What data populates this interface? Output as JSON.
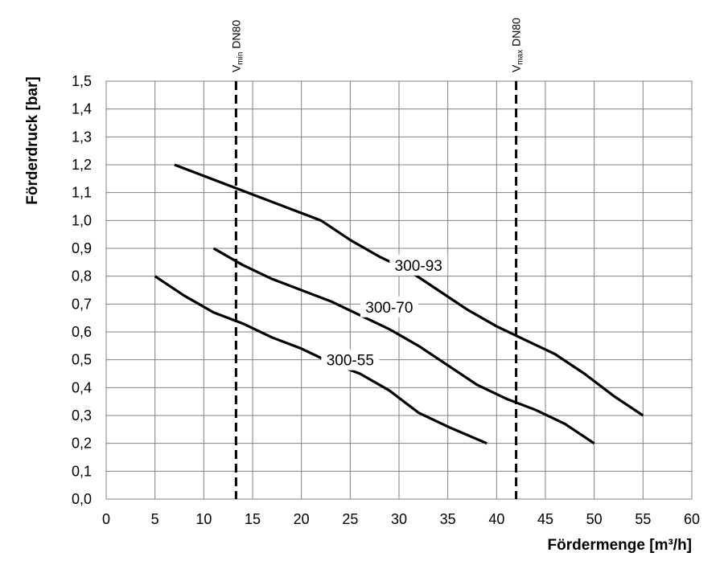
{
  "chart_data": {
    "type": "line",
    "title": "",
    "xlabel": "Fördermenge [m³/h]",
    "ylabel": "Förderdruck [bar]",
    "xlim": [
      0,
      60
    ],
    "ylim": [
      0,
      1.5
    ],
    "x_ticks": [
      "0",
      "5",
      "10",
      "15",
      "20",
      "25",
      "30",
      "35",
      "40",
      "45",
      "50",
      "55",
      "60"
    ],
    "y_ticks": [
      "0,0",
      "0,1",
      "0,2",
      "0,3",
      "0,4",
      "0,5",
      "0,6",
      "0,7",
      "0,8",
      "0,9",
      "1,0",
      "1,1",
      "1,2",
      "1,3",
      "1,4",
      "1,5"
    ],
    "grid": true,
    "series": [
      {
        "name": "300-93",
        "x": [
          7,
          10,
          13,
          16,
          19,
          22,
          25,
          28,
          31,
          34,
          37,
          40,
          43,
          46,
          49,
          52,
          55
        ],
        "y": [
          1.2,
          1.16,
          1.12,
          1.08,
          1.04,
          1.0,
          0.93,
          0.87,
          0.82,
          0.75,
          0.68,
          0.62,
          0.57,
          0.52,
          0.45,
          0.37,
          0.3
        ]
      },
      {
        "name": "300-70",
        "x": [
          11,
          14,
          17,
          20,
          23,
          26,
          29,
          32,
          35,
          38,
          41,
          44,
          47,
          50
        ],
        "y": [
          0.9,
          0.84,
          0.79,
          0.75,
          0.71,
          0.66,
          0.61,
          0.55,
          0.48,
          0.41,
          0.36,
          0.32,
          0.27,
          0.2
        ]
      },
      {
        "name": "300-55",
        "x": [
          5,
          8,
          11,
          14,
          17,
          20,
          23,
          26,
          29,
          32,
          35,
          39
        ],
        "y": [
          0.8,
          0.73,
          0.67,
          0.63,
          0.58,
          0.54,
          0.49,
          0.45,
          0.39,
          0.31,
          0.26,
          0.2
        ]
      }
    ],
    "reference_lines": [
      {
        "label_main": "V",
        "label_sub": "min",
        "label_rest": " DN80",
        "x": 13.3
      },
      {
        "label_main": "V",
        "label_sub": "max",
        "label_rest": " DN80",
        "x": 42
      }
    ],
    "curve_labels": [
      {
        "text": "300-93",
        "x": 32,
        "y": 0.84
      },
      {
        "text": "300-70",
        "x": 29,
        "y": 0.69
      },
      {
        "text": "300-55",
        "x": 25,
        "y": 0.5
      }
    ]
  }
}
